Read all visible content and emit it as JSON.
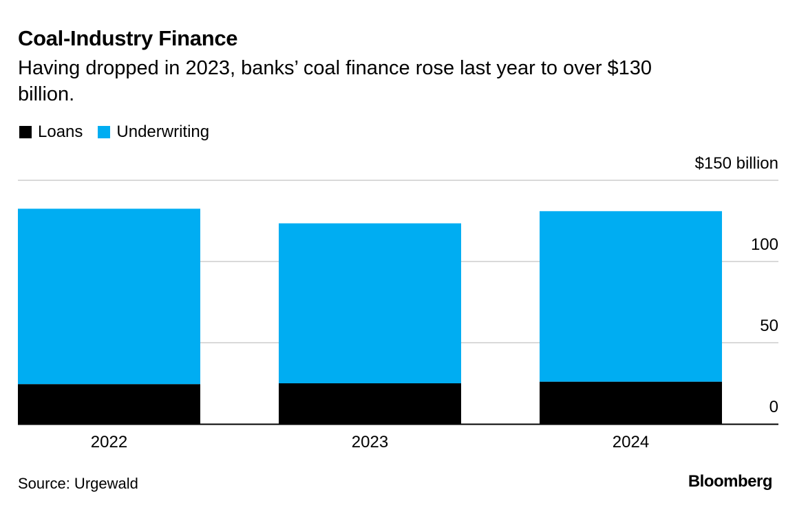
{
  "header": {
    "title": "Coal-Industry Finance",
    "subtitle": "Having dropped in 2023, banks’ coal finance rose last year to over $130 billion."
  },
  "legend": {
    "items": [
      {
        "label": "Loans",
        "color": "#000000"
      },
      {
        "label": "Underwriting",
        "color": "#00adf2"
      }
    ]
  },
  "chart_data": {
    "type": "bar",
    "stacked": true,
    "categories": [
      "2022",
      "2023",
      "2024"
    ],
    "series": [
      {
        "name": "Loans",
        "color": "#000000",
        "values": [
          24.5,
          25,
          26
        ]
      },
      {
        "name": "Underwriting",
        "color": "#00adf2",
        "values": [
          108,
          98.5,
          105
        ]
      }
    ],
    "ylim": [
      0,
      150
    ],
    "yticks": [
      0,
      50,
      100,
      150
    ],
    "ytick_labels": [
      "0",
      "50",
      "100",
      "$150 billion"
    ],
    "grid": true,
    "axis_position": "right",
    "legend_position": "top-left"
  },
  "footer": {
    "source": "Source: Urgewald",
    "logo": "Bloomberg"
  }
}
